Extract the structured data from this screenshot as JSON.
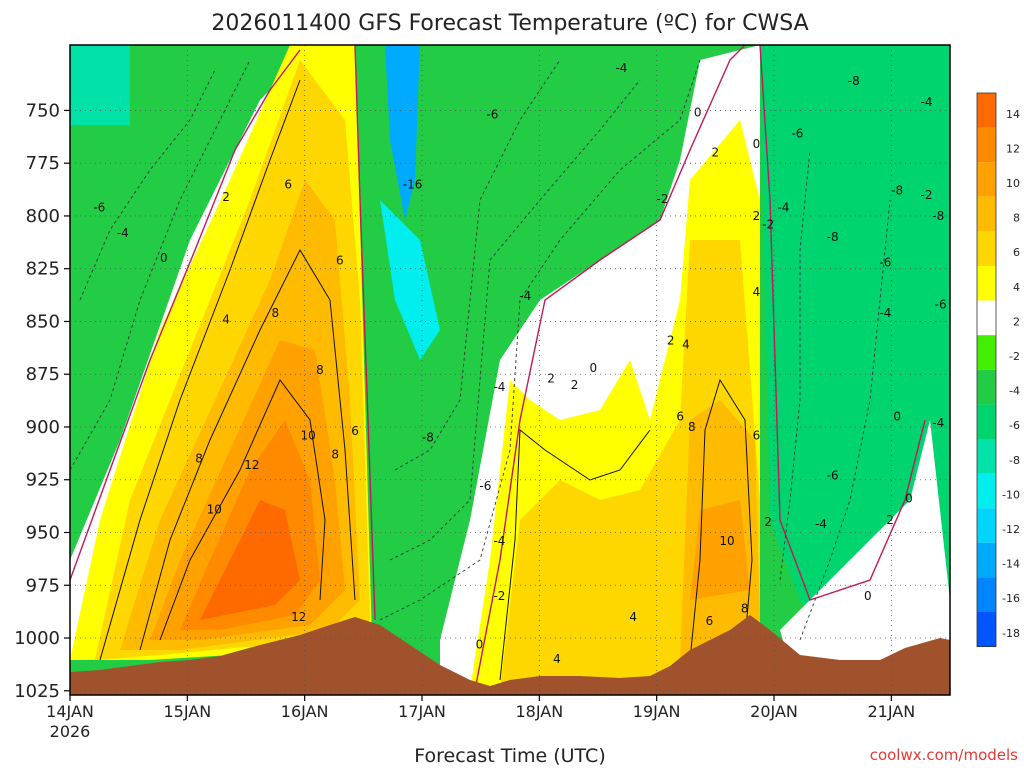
{
  "chart_data": {
    "type": "heatmap",
    "title": "2026011400 GFS Forecast Temperature (ºC) for CWSA",
    "xlabel": "Forecast Time (UTC)",
    "ylabel": "",
    "credit": "coolwx.com/models",
    "x_ticks": [
      "14JAN",
      "15JAN",
      "16JAN",
      "17JAN",
      "18JAN",
      "19JAN",
      "20JAN",
      "21JAN"
    ],
    "x_year": "2026",
    "x_range_days": [
      0,
      7.5
    ],
    "y_ticks": [
      750,
      775,
      800,
      825,
      850,
      875,
      900,
      925,
      950,
      975,
      1000,
      1025
    ],
    "y_range_hpa": [
      719,
      1027
    ],
    "colorbar": {
      "labels": [
        "14",
        "12",
        "10",
        "8",
        "6",
        "4",
        "2",
        "-2",
        "-4",
        "-6",
        "-8",
        "-10",
        "-12",
        "-14",
        "-16",
        "-18"
      ],
      "colors": [
        "#ff6a00",
        "#ff8a00",
        "#ffa200",
        "#ffbb00",
        "#ffd700",
        "#ffff00",
        "#ffffff",
        "#44ee00",
        "#22cc44",
        "#00d46e",
        "#00e2a8",
        "#00eeee",
        "#00d4ff",
        "#00aaff",
        "#0085ff",
        "#0055ff"
      ]
    },
    "terrain_color": "#a0522d",
    "warm_peaks": [
      {
        "time_day": 1.7,
        "pressure": 950,
        "temp_c": 14
      },
      {
        "time_day": 4.5,
        "pressure": 925,
        "temp_c": 4
      },
      {
        "time_day": 5.6,
        "pressure": 950,
        "temp_c": 10
      }
    ],
    "cold_cores": [
      {
        "time_day": 2.8,
        "pressure": 775,
        "temp_c": -16
      },
      {
        "time_day": 6.7,
        "pressure": 800,
        "temp_c": -8
      }
    ],
    "contour_labels": [
      {
        "text": "-6",
        "t": 0.25,
        "p": 796
      },
      {
        "text": "-4",
        "t": 0.45,
        "p": 808
      },
      {
        "text": "0",
        "t": 0.8,
        "p": 820
      },
      {
        "text": "2",
        "t": 1.33,
        "p": 791
      },
      {
        "text": "6",
        "t": 1.86,
        "p": 785
      },
      {
        "text": "4",
        "t": 1.33,
        "p": 849
      },
      {
        "text": "8",
        "t": 1.75,
        "p": 846
      },
      {
        "text": "6",
        "t": 2.3,
        "p": 821
      },
      {
        "text": "8",
        "t": 2.13,
        "p": 873
      },
      {
        "text": "6",
        "t": 2.43,
        "p": 902
      },
      {
        "text": "8",
        "t": 2.26,
        "p": 913
      },
      {
        "text": "10",
        "t": 2.03,
        "p": 904
      },
      {
        "text": "12",
        "t": 1.55,
        "p": 918
      },
      {
        "text": "8",
        "t": 1.1,
        "p": 915
      },
      {
        "text": "10",
        "t": 1.23,
        "p": 939
      },
      {
        "text": "12",
        "t": 1.95,
        "p": 990
      },
      {
        "text": "-16",
        "t": 2.92,
        "p": 785
      },
      {
        "text": "-6",
        "t": 3.6,
        "p": 752
      },
      {
        "text": "-4",
        "t": 3.88,
        "p": 838
      },
      {
        "text": "-4",
        "t": 3.66,
        "p": 881
      },
      {
        "text": "-8",
        "t": 3.05,
        "p": 905
      },
      {
        "text": "-6",
        "t": 3.54,
        "p": 928
      },
      {
        "text": "-4",
        "t": 3.66,
        "p": 954
      },
      {
        "text": "-2",
        "t": 3.66,
        "p": 980
      },
      {
        "text": "0",
        "t": 3.49,
        "p": 1003
      },
      {
        "text": "-4",
        "t": 4.7,
        "p": 730
      },
      {
        "text": "2",
        "t": 4.1,
        "p": 877
      },
      {
        "text": "2",
        "t": 4.3,
        "p": 880
      },
      {
        "text": "0",
        "t": 4.46,
        "p": 872
      },
      {
        "text": "4",
        "t": 4.8,
        "p": 990
      },
      {
        "text": "4",
        "t": 4.15,
        "p": 1010
      },
      {
        "text": "-2",
        "t": 5.05,
        "p": 792
      },
      {
        "text": "0",
        "t": 5.35,
        "p": 751
      },
      {
        "text": "2",
        "t": 5.12,
        "p": 859
      },
      {
        "text": "4",
        "t": 5.25,
        "p": 861
      },
      {
        "text": "2",
        "t": 5.5,
        "p": 770
      },
      {
        "text": "2",
        "t": 5.85,
        "p": 800
      },
      {
        "text": "4",
        "t": 5.85,
        "p": 836
      },
      {
        "text": "6",
        "t": 5.2,
        "p": 895
      },
      {
        "text": "8",
        "t": 5.3,
        "p": 900
      },
      {
        "text": "6",
        "t": 5.85,
        "p": 904
      },
      {
        "text": "10",
        "t": 5.6,
        "p": 954
      },
      {
        "text": "6",
        "t": 5.45,
        "p": 992
      },
      {
        "text": "8",
        "t": 5.75,
        "p": 986
      },
      {
        "text": "0",
        "t": 5.85,
        "p": 766
      },
      {
        "text": "-2",
        "t": 5.95,
        "p": 804
      },
      {
        "text": "-4",
        "t": 6.08,
        "p": 796
      },
      {
        "text": "-6",
        "t": 6.2,
        "p": 761
      },
      {
        "text": "-8",
        "t": 6.68,
        "p": 736
      },
      {
        "text": "-8",
        "t": 6.5,
        "p": 810
      },
      {
        "text": "-8",
        "t": 7.05,
        "p": 788
      },
      {
        "text": "-6",
        "t": 6.95,
        "p": 822
      },
      {
        "text": "-4",
        "t": 6.95,
        "p": 846
      },
      {
        "text": "-6",
        "t": 6.5,
        "p": 923
      },
      {
        "text": "-4",
        "t": 6.4,
        "p": 946
      },
      {
        "text": "0",
        "t": 6.8,
        "p": 980
      },
      {
        "text": "-2",
        "t": 7.3,
        "p": 790
      },
      {
        "text": "-4",
        "t": 7.3,
        "p": 746
      },
      {
        "text": "-8",
        "t": 7.4,
        "p": 800
      },
      {
        "text": "-6",
        "t": 7.42,
        "p": 842
      },
      {
        "text": "0",
        "t": 7.05,
        "p": 895
      },
      {
        "text": "-4",
        "t": 7.4,
        "p": 898
      },
      {
        "text": "2",
        "t": 6.99,
        "p": 944
      },
      {
        "text": "0",
        "t": 7.15,
        "p": 934
      },
      {
        "text": "2",
        "t": 5.95,
        "p": 945
      }
    ]
  }
}
